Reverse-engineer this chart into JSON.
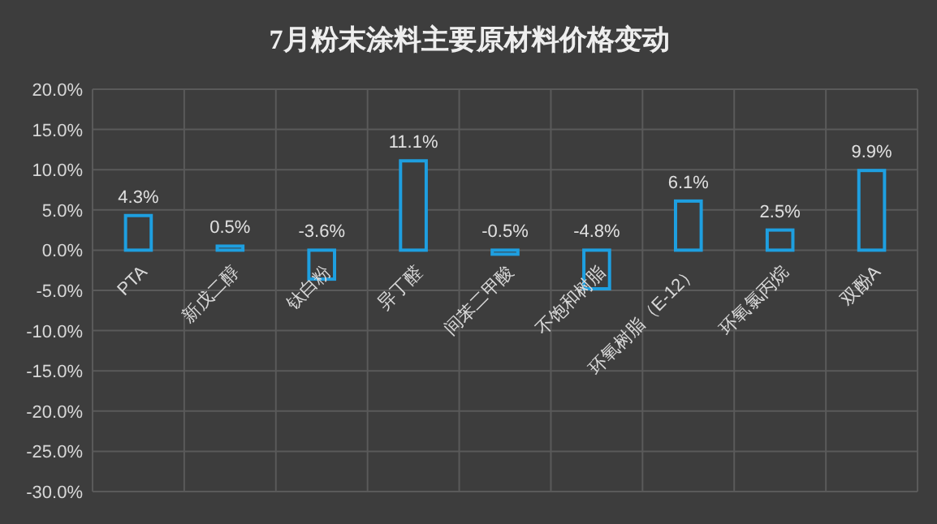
{
  "chart_data": {
    "type": "bar",
    "title": "7月粉末涂料主要原材料价格变动",
    "categories": [
      "PTA",
      "新戊二醇",
      "钛白粉",
      "异丁醛",
      "间苯二甲酸",
      "不饱和树脂",
      "环氧树脂（E-12）",
      "环氧氯丙烷",
      "双酚A"
    ],
    "values": [
      4.3,
      0.5,
      -3.6,
      11.1,
      -0.5,
      -4.8,
      6.1,
      2.5,
      9.9
    ],
    "value_labels": [
      "4.3%",
      "0.5%",
      "-3.6%",
      "11.1%",
      "-0.5%",
      "-4.8%",
      "6.1%",
      "2.5%",
      "9.9%"
    ],
    "color": "#1e9fe0",
    "ylim": [
      -30,
      20
    ],
    "yticks": [
      {
        "value": -30,
        "label": "-30.0%"
      },
      {
        "value": -25,
        "label": "-25.0%"
      },
      {
        "value": -20,
        "label": "-20.0%"
      },
      {
        "value": -15,
        "label": "-15.0%"
      },
      {
        "value": -10,
        "label": "-10.0%"
      },
      {
        "value": -5,
        "label": "-5.0%"
      },
      {
        "value": 0,
        "label": "0.0%"
      },
      {
        "value": 5,
        "label": "5.0%"
      },
      {
        "value": 10,
        "label": "10.0%"
      },
      {
        "value": 15,
        "label": "15.0%"
      },
      {
        "value": 20,
        "label": "20.0%"
      }
    ],
    "grid": true
  }
}
